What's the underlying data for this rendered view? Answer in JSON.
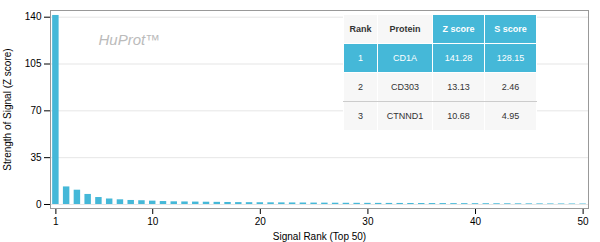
{
  "chart_data": {
    "type": "bar",
    "title": "HuProt™",
    "xlabel": "Signal Rank (Top 50)",
    "ylabel": "Strength of Signal (Z score)",
    "x": [
      1,
      2,
      3,
      4,
      5,
      6,
      7,
      8,
      9,
      10,
      11,
      12,
      13,
      14,
      15,
      16,
      17,
      18,
      19,
      20,
      21,
      22,
      23,
      24,
      25,
      26,
      27,
      28,
      29,
      30,
      31,
      32,
      33,
      34,
      35,
      36,
      37,
      38,
      39,
      40,
      41,
      42,
      43,
      44,
      45,
      46,
      47,
      48,
      49,
      50
    ],
    "values": [
      141.28,
      13.13,
      10.68,
      7.5,
      5.2,
      4.1,
      3.5,
      3.0,
      2.8,
      2.5,
      2.2,
      2.0,
      1.9,
      1.8,
      1.7,
      1.6,
      1.5,
      1.4,
      1.35,
      1.3,
      1.25,
      1.2,
      1.15,
      1.1,
      1.05,
      1.0,
      0.95,
      0.9,
      0.88,
      0.85,
      0.82,
      0.8,
      0.78,
      0.75,
      0.72,
      0.7,
      0.68,
      0.65,
      0.63,
      0.6,
      0.58,
      0.55,
      0.53,
      0.5,
      0.48,
      0.45,
      0.42,
      0.4,
      0.38,
      0.35
    ],
    "color": "#45b8d8",
    "xlim": [
      0.5,
      50.5
    ],
    "xticks": [
      1,
      10,
      20,
      30,
      40,
      50
    ],
    "ylim": [
      -3,
      145
    ],
    "yticks": [
      0,
      35,
      70,
      105,
      140
    ],
    "grid": true,
    "table": {
      "columns": [
        "Rank",
        "Protein",
        "Z score",
        "S score"
      ],
      "rows": [
        [
          "1",
          "CD1A",
          "141.28",
          "128.15"
        ],
        [
          "2",
          "CD303",
          "13.13",
          "2.46"
        ],
        [
          "3",
          "CTNND1",
          "10.68",
          "4.95"
        ]
      ]
    }
  }
}
